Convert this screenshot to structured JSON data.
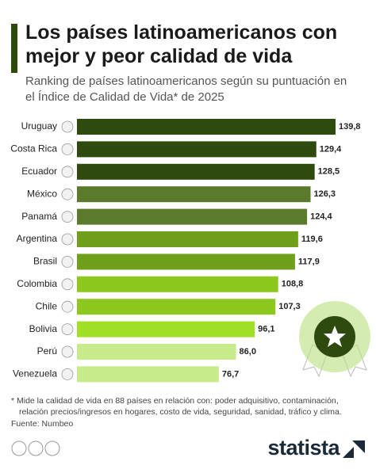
{
  "chart_data": {
    "type": "bar",
    "orientation": "horizontal",
    "title": "Los países latinoamericanos con mejor y peor calidad de vida",
    "subtitle": "Ranking de países latinoamericanos según su puntuación en el Índice de Calidad de Vida* de 2025",
    "categories": [
      "Uruguay",
      "Costa Rica",
      "Ecuador",
      "México",
      "Panamá",
      "Argentina",
      "Brasil",
      "Colombia",
      "Chile",
      "Bolivia",
      "Perú",
      "Venezuela"
    ],
    "values": [
      139.8,
      129.4,
      128.5,
      126.3,
      124.4,
      119.6,
      117.9,
      108.8,
      107.3,
      96.1,
      86.0,
      76.7
    ],
    "value_labels": [
      "139,8",
      "129,4",
      "128,5",
      "126,3",
      "124,4",
      "119,6",
      "117,9",
      "108,8",
      "107,3",
      "96,1",
      "86,0",
      "76,7"
    ],
    "colors": [
      "#2e4a0c",
      "#2e4a0c",
      "#2e4a0c",
      "#5b7a2c",
      "#5b7a2c",
      "#6fa01c",
      "#6fa01c",
      "#8cc81e",
      "#8cc81e",
      "#9fe025",
      "#c8eb8c",
      "#c8eb8c"
    ],
    "footnote": "* Mide la calidad de vida en 88 países en relación con: poder adquisitivo, contaminación, relación precios/ingresos en hogares, costo de vida, seguridad, sanidad, tráfico y clima.",
    "source": "Fuente: Numbeo",
    "brand": "statista"
  }
}
